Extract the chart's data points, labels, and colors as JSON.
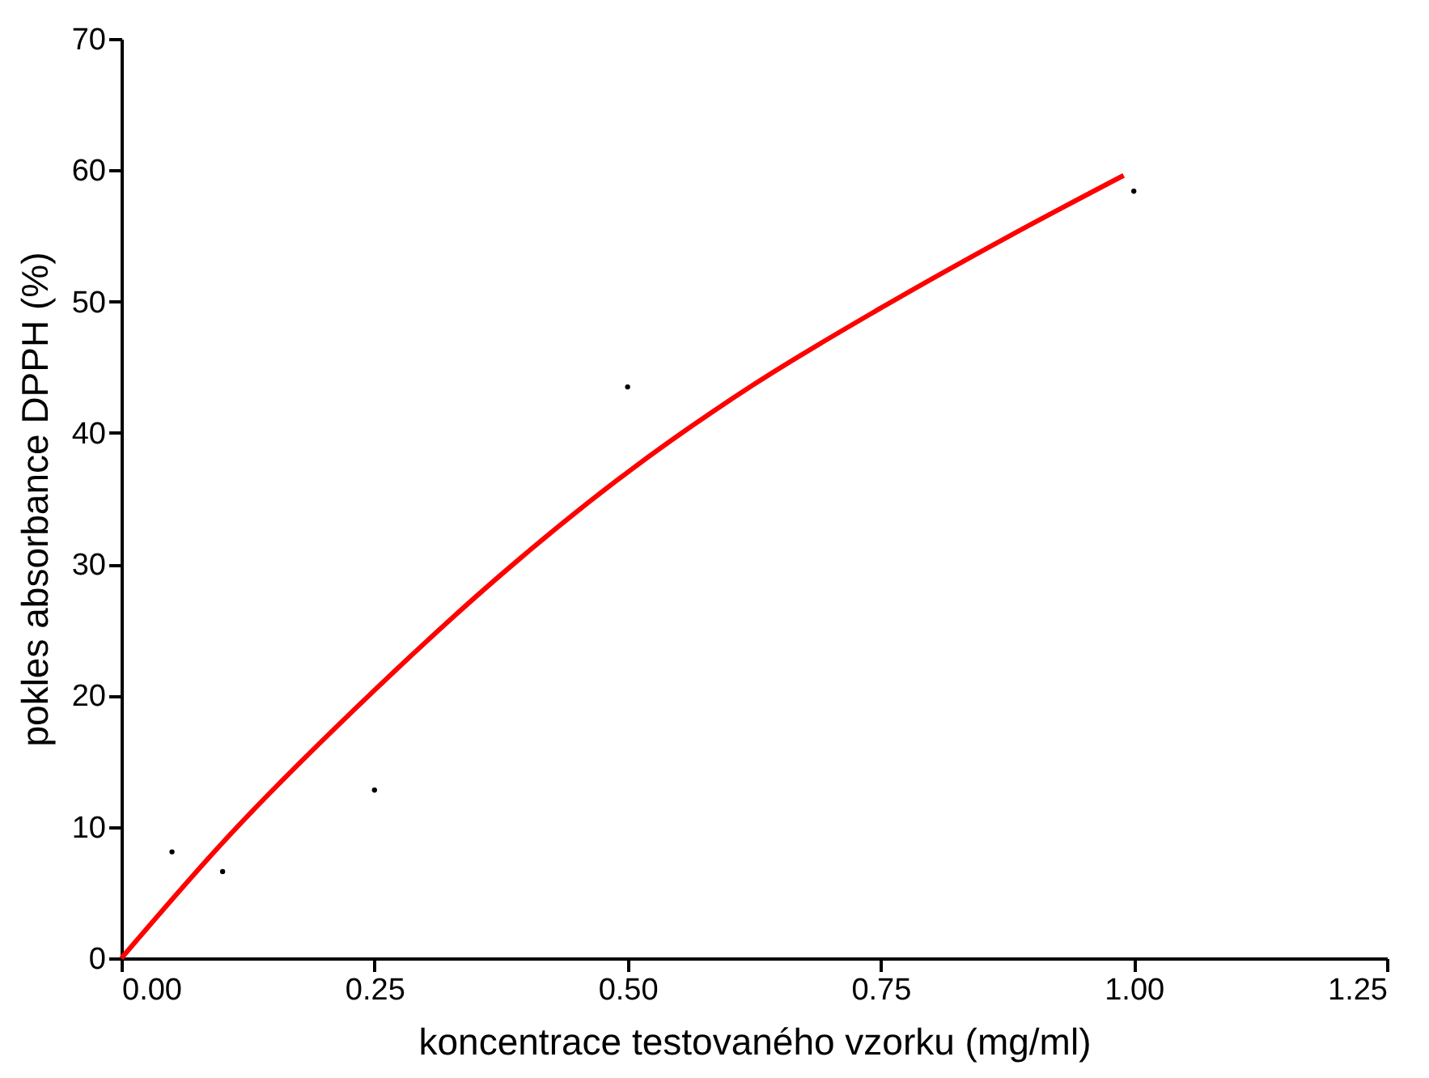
{
  "chart_data": {
    "type": "scatter",
    "xlabel": "koncentrace testovaného vzorku (mg/ml)",
    "ylabel": "pokles absorbance DPPH (%)",
    "xlim": [
      0,
      1.25
    ],
    "xticks": [
      {
        "value": 0,
        "label": "0.00"
      },
      {
        "value": 0.25,
        "label": "0.25"
      },
      {
        "value": 0.5,
        "label": "0.50"
      },
      {
        "value": 0.75,
        "label": "0.75"
      },
      {
        "value": 1,
        "label": "1.00"
      },
      {
        "value": 1.25,
        "label": "1.25"
      }
    ],
    "ylim": [
      0,
      70
    ],
    "yticks": [
      0,
      10,
      20,
      30,
      40,
      50,
      60,
      70
    ],
    "grid": false,
    "series": [
      {
        "type": "scatter",
        "marker": "circle",
        "color": "#000000",
        "x": [
          0.05,
          0.1,
          0.25,
          0.5,
          1.0
        ],
        "values": [
          8.1,
          6.6,
          12.8,
          43.5,
          58.4
        ]
      },
      {
        "type": "line",
        "color": "#ff0000",
        "line_style": "solid",
        "x": [
          0,
          0.1,
          0.25,
          0.375,
          0.5,
          0.625,
          0.75,
          0.875,
          0.99
        ],
        "values": [
          0,
          8.8,
          20.4,
          29.2,
          37,
          43.7,
          49.5,
          54.9,
          59.6
        ]
      }
    ]
  }
}
